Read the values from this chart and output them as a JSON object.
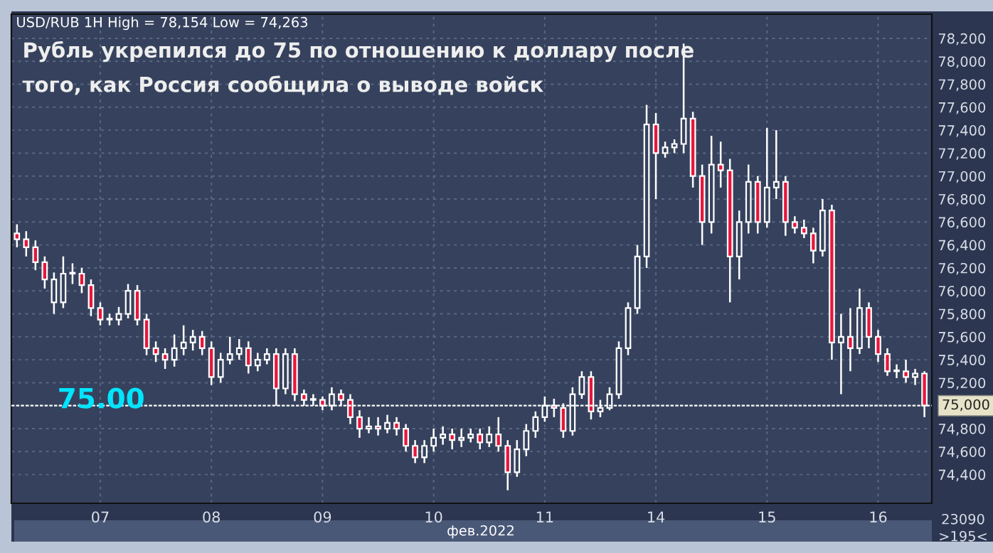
{
  "chart_data": {
    "type": "candlestick",
    "title": "Рубль укрепился до 75 по отношению к доллару после\nтого, как Россия сообщила о выводе войск",
    "subtitle": "USD/RUB 1H High = 78,154 Low = 74,263",
    "xlabel": "фев.2022",
    "annotations": [
      "75.00",
      "23090",
      ">195<"
    ],
    "categories": [
      null,
      null,
      null,
      null,
      null,
      null,
      null,
      null,
      null,
      "07",
      null,
      null,
      null,
      null,
      null,
      null,
      null,
      null,
      null,
      null,
      null,
      "08",
      null,
      null,
      null,
      null,
      null,
      null,
      null,
      null,
      null,
      null,
      null,
      "09",
      null,
      null,
      null,
      null,
      null,
      null,
      null,
      null,
      null,
      null,
      null,
      "10",
      null,
      null,
      null,
      null,
      null,
      null,
      null,
      null,
      null,
      null,
      null,
      "11",
      null,
      null,
      null,
      null,
      null,
      null,
      null,
      null,
      null,
      null,
      null,
      "14",
      null,
      null,
      null,
      null,
      null,
      null,
      null,
      null,
      null,
      null,
      null,
      "15",
      null,
      null,
      null,
      null,
      null,
      null,
      null,
      null,
      null,
      null,
      null,
      "16",
      null,
      null,
      null,
      null,
      null
    ],
    "ohlc": [
      [
        76500,
        76580,
        76380,
        76450
      ],
      [
        76450,
        76520,
        76300,
        76380
      ],
      [
        76380,
        76440,
        76180,
        76250
      ],
      [
        76250,
        76300,
        76020,
        76100
      ],
      [
        75900,
        76160,
        75800,
        76100
      ],
      [
        75900,
        76300,
        75850,
        76150
      ],
      [
        76150,
        76240,
        76060,
        76150
      ],
      [
        76150,
        76200,
        75980,
        76050
      ],
      [
        76050,
        76100,
        75780,
        75850
      ],
      [
        75850,
        75900,
        75700,
        75750
      ],
      [
        75750,
        75800,
        75700,
        75750
      ],
      [
        75750,
        75860,
        75700,
        75800
      ],
      [
        75800,
        76060,
        75760,
        76000
      ],
      [
        76000,
        76050,
        75700,
        75750
      ],
      [
        75750,
        75800,
        75440,
        75500
      ],
      [
        75500,
        75560,
        75380,
        75450
      ],
      [
        75450,
        75500,
        75320,
        75400
      ],
      [
        75400,
        75620,
        75340,
        75500
      ],
      [
        75500,
        75700,
        75440,
        75550
      ],
      [
        75550,
        75660,
        75480,
        75600
      ],
      [
        75600,
        75650,
        75440,
        75500
      ],
      [
        75500,
        75560,
        75180,
        75250
      ],
      [
        75250,
        75460,
        75200,
        75400
      ],
      [
        75400,
        75600,
        75360,
        75450
      ],
      [
        75450,
        75580,
        75400,
        75500
      ],
      [
        75500,
        75560,
        75280,
        75350
      ],
      [
        75350,
        75460,
        75300,
        75400
      ],
      [
        75400,
        75500,
        75360,
        75450
      ],
      [
        75450,
        75500,
        75000,
        75150
      ],
      [
        75150,
        75500,
        75100,
        75450
      ],
      [
        75450,
        75500,
        75040,
        75100
      ],
      [
        75100,
        75140,
        75000,
        75050
      ],
      [
        75050,
        75100,
        75000,
        75050
      ],
      [
        75050,
        75080,
        74960,
        75000
      ],
      [
        75000,
        75160,
        74960,
        75100
      ],
      [
        75100,
        75140,
        75000,
        75050
      ],
      [
        75050,
        75100,
        74840,
        74900
      ],
      [
        74900,
        74960,
        74720,
        74800
      ],
      [
        74800,
        74900,
        74760,
        74820
      ],
      [
        74820,
        74900,
        74740,
        74800
      ],
      [
        74800,
        74920,
        74760,
        74850
      ],
      [
        74850,
        74900,
        74740,
        74800
      ],
      [
        74800,
        74840,
        74600,
        74650
      ],
      [
        74650,
        74700,
        74500,
        74550
      ],
      [
        74550,
        74700,
        74500,
        74650
      ],
      [
        74650,
        74800,
        74600,
        74720
      ],
      [
        74720,
        74820,
        74660,
        74750
      ],
      [
        74750,
        74800,
        74620,
        74700
      ],
      [
        74700,
        74800,
        74640,
        74720
      ],
      [
        74720,
        74800,
        74680,
        74750
      ],
      [
        74750,
        74800,
        74620,
        74680
      ],
      [
        74680,
        74820,
        74640,
        74750
      ],
      [
        74750,
        74900,
        74600,
        74650
      ],
      [
        74650,
        74700,
        74263,
        74420
      ],
      [
        74420,
        74700,
        74380,
        74620
      ],
      [
        74620,
        74840,
        74560,
        74780
      ],
      [
        74780,
        74950,
        74720,
        74900
      ],
      [
        74900,
        75080,
        74860,
        75000
      ],
      [
        75000,
        75060,
        74900,
        74980
      ],
      [
        74980,
        75020,
        74720,
        74780
      ],
      [
        74780,
        75160,
        74740,
        75100
      ],
      [
        75100,
        75300,
        75060,
        75250
      ],
      [
        75250,
        75300,
        74880,
        74950
      ],
      [
        74950,
        75050,
        74900,
        74980
      ],
      [
        74980,
        75160,
        74960,
        75100
      ],
      [
        75100,
        75560,
        75060,
        75500
      ],
      [
        75500,
        75900,
        75440,
        75850
      ],
      [
        75850,
        76400,
        75800,
        76300
      ],
      [
        76300,
        77620,
        76200,
        77450
      ],
      [
        77450,
        77550,
        76800,
        77200
      ],
      [
        77200,
        77300,
        77160,
        77250
      ],
      [
        77250,
        77320,
        77200,
        77280
      ],
      [
        77280,
        78154,
        77200,
        77500
      ],
      [
        77500,
        77560,
        76900,
        77000
      ],
      [
        77000,
        77100,
        76400,
        76600
      ],
      [
        76600,
        77350,
        76500,
        77100
      ],
      [
        77100,
        77300,
        76900,
        77050
      ],
      [
        77050,
        77150,
        75900,
        76300
      ],
      [
        76300,
        76700,
        76100,
        76600
      ],
      [
        76600,
        77100,
        76500,
        76950
      ],
      [
        76950,
        77000,
        76500,
        76600
      ],
      [
        76600,
        77420,
        76550,
        76900
      ],
      [
        76900,
        77400,
        76800,
        76950
      ],
      [
        76950,
        77000,
        76480,
        76600
      ],
      [
        76600,
        76650,
        76500,
        76550
      ],
      [
        76550,
        76620,
        76460,
        76500
      ],
      [
        76500,
        76550,
        76240,
        76350
      ],
      [
        76350,
        76800,
        76300,
        76700
      ],
      [
        76700,
        76750,
        75400,
        75550
      ],
      [
        75550,
        75800,
        75100,
        75600
      ],
      [
        75600,
        75850,
        75300,
        75500
      ],
      [
        75500,
        76020,
        75450,
        75850
      ],
      [
        75850,
        75900,
        75500,
        75600
      ],
      [
        75600,
        75660,
        75380,
        75450
      ],
      [
        75450,
        75500,
        75260,
        75300
      ],
      [
        75300,
        75360,
        75240,
        75300
      ],
      [
        75300,
        75400,
        75200,
        75250
      ],
      [
        75250,
        75320,
        75180,
        75280
      ],
      [
        75280,
        75300,
        74900,
        75000
      ]
    ],
    "ylim": [
      74150,
      78410
    ],
    "yticks": [
      {
        "value": 74400,
        "label": "74,400"
      },
      {
        "value": 74600,
        "label": "74,600"
      },
      {
        "value": 74800,
        "label": "74,800"
      },
      {
        "value": 75200,
        "label": "75,200"
      },
      {
        "value": 75400,
        "label": "75,400"
      },
      {
        "value": 75600,
        "label": "75,600"
      },
      {
        "value": 75800,
        "label": "75,800"
      },
      {
        "value": 76000,
        "label": "76,000"
      },
      {
        "value": 76200,
        "label": "76,200"
      },
      {
        "value": 76400,
        "label": "76,400"
      },
      {
        "value": 76600,
        "label": "76,600"
      },
      {
        "value": 76800,
        "label": "76,800"
      },
      {
        "value": 77000,
        "label": "77,000"
      },
      {
        "value": 77200,
        "label": "77,200"
      },
      {
        "value": 77400,
        "label": "77,400"
      },
      {
        "value": 77600,
        "label": "77,600"
      },
      {
        "value": 77800,
        "label": "77,800"
      },
      {
        "value": 78000,
        "label": "78,000"
      },
      {
        "value": 78200,
        "label": "78,200"
      }
    ],
    "ref_lines": [
      {
        "axis": "y",
        "value": 75000,
        "label": "75,000",
        "color": "#ffffff",
        "line_style": "dashed"
      }
    ],
    "grid": true
  }
}
